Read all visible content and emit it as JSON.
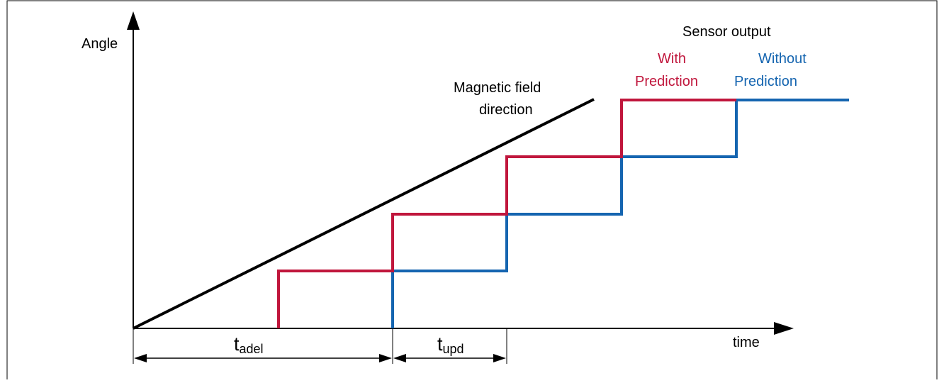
{
  "axes": {
    "y_label": "Angle",
    "x_label": "time"
  },
  "legend": {
    "title": "Sensor output",
    "with_line1": "With",
    "with_line2": "Prediction",
    "without_line1": "Without",
    "without_line2": "Prediction"
  },
  "field": {
    "line1": "Magnetic field",
    "line2": "direction"
  },
  "intervals": {
    "adel_main": "t",
    "adel_sub": "adel",
    "upd_main": "t",
    "upd_sub": "upd"
  },
  "colors": {
    "with_prediction": "#c0163c",
    "without_prediction": "#1565b0",
    "field": "#000000",
    "axis": "#000000"
  }
}
